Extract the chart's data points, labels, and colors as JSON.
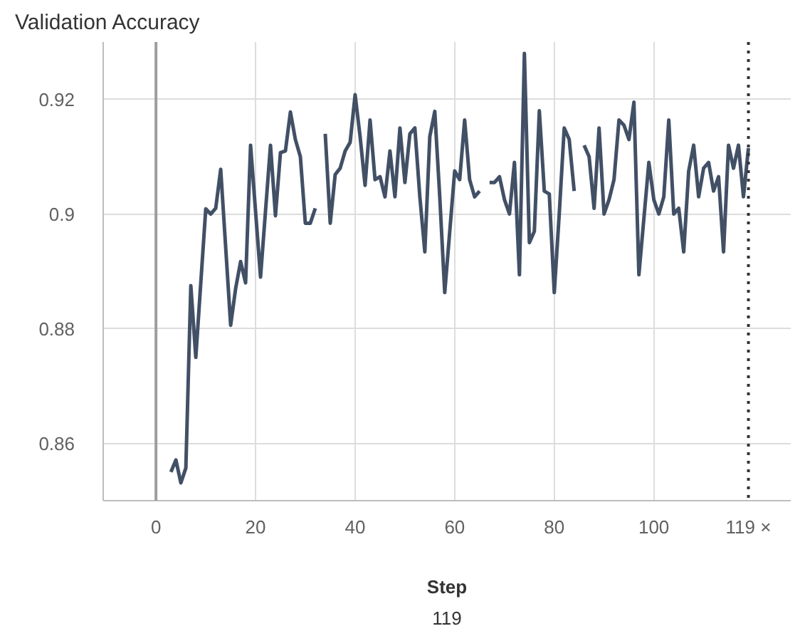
{
  "chart_data": {
    "type": "line",
    "title": "Validation Accuracy",
    "xlabel": "Step",
    "x": [
      3,
      4,
      5,
      6,
      7,
      8,
      9,
      10,
      11,
      12,
      13,
      15,
      16,
      17,
      18,
      19,
      21,
      23,
      24,
      25,
      26,
      27,
      28,
      29,
      30,
      31,
      32,
      33,
      34,
      35,
      36,
      37,
      38,
      39,
      40,
      41,
      42,
      43,
      44,
      45,
      46,
      47,
      48,
      49,
      50,
      51,
      52,
      53,
      54,
      55,
      56,
      57,
      58,
      60,
      61,
      62,
      63,
      64,
      65,
      66,
      67,
      68,
      69,
      70,
      71,
      72,
      73,
      74,
      75,
      76,
      77,
      78,
      79,
      80,
      81,
      82,
      83,
      84,
      85,
      86,
      87,
      88,
      89,
      90,
      91,
      92,
      93,
      94,
      95,
      96,
      97,
      99,
      100,
      101,
      102,
      103,
      104,
      105,
      106,
      107,
      108,
      109,
      110,
      111,
      112,
      113,
      114,
      115,
      116,
      117,
      118,
      119
    ],
    "series": [
      {
        "color": "#425066",
        "values": [
          0.855,
          0.8571,
          0.8531,
          0.8557,
          0.8875,
          0.875,
          0.888,
          0.9009,
          0.9,
          0.901,
          0.9078,
          0.8806,
          0.887,
          0.8917,
          0.888,
          0.912,
          0.889,
          0.912,
          0.8997,
          0.9107,
          0.911,
          0.9178,
          0.913,
          0.91,
          0.8984,
          0.8984,
          0.901,
          null,
          0.914,
          0.8984,
          0.9069,
          0.908,
          0.911,
          0.9125,
          0.9208,
          0.9135,
          0.905,
          0.9164,
          0.906,
          0.9065,
          0.903,
          0.911,
          0.903,
          0.915,
          0.9055,
          0.914,
          0.915,
          0.903,
          0.8934,
          0.9135,
          0.9179,
          0.903,
          0.8863,
          0.9075,
          0.906,
          0.9164,
          0.906,
          0.903,
          0.904,
          null,
          0.9055,
          0.9055,
          0.9065,
          0.9025,
          0.9,
          0.909,
          0.8894,
          0.928,
          0.895,
          0.897,
          0.918,
          0.904,
          0.9035,
          0.8863,
          0.9,
          0.915,
          0.913,
          0.904,
          null,
          0.912,
          0.91,
          0.901,
          0.915,
          0.9,
          0.9025,
          0.906,
          0.9164,
          0.9155,
          0.913,
          0.9195,
          0.8894,
          0.909,
          0.9025,
          0.9,
          0.903,
          0.9164,
          0.9,
          0.901,
          0.8934,
          0.9075,
          0.912,
          0.903,
          0.908,
          0.909,
          0.904,
          0.9065,
          0.8934,
          0.912,
          0.908,
          0.912,
          0.903,
          0.9115
        ]
      }
    ],
    "xlim": [
      -10.6,
      127.5
    ],
    "ylim": [
      0.85,
      0.93
    ],
    "xticks": [
      0,
      20,
      40,
      60,
      80,
      100
    ],
    "yticks": [
      0.86,
      0.88,
      0.9,
      0.92
    ],
    "grid": true,
    "line_style": "solid",
    "ref_lines": [
      {
        "axis": "x",
        "value": 0,
        "color": "#9e9e9e",
        "line_style": "solid"
      },
      {
        "axis": "x",
        "value": 119,
        "label": "119 ×",
        "color": "#333333",
        "line_style": "dotted"
      }
    ],
    "annotations": [
      "119"
    ]
  }
}
